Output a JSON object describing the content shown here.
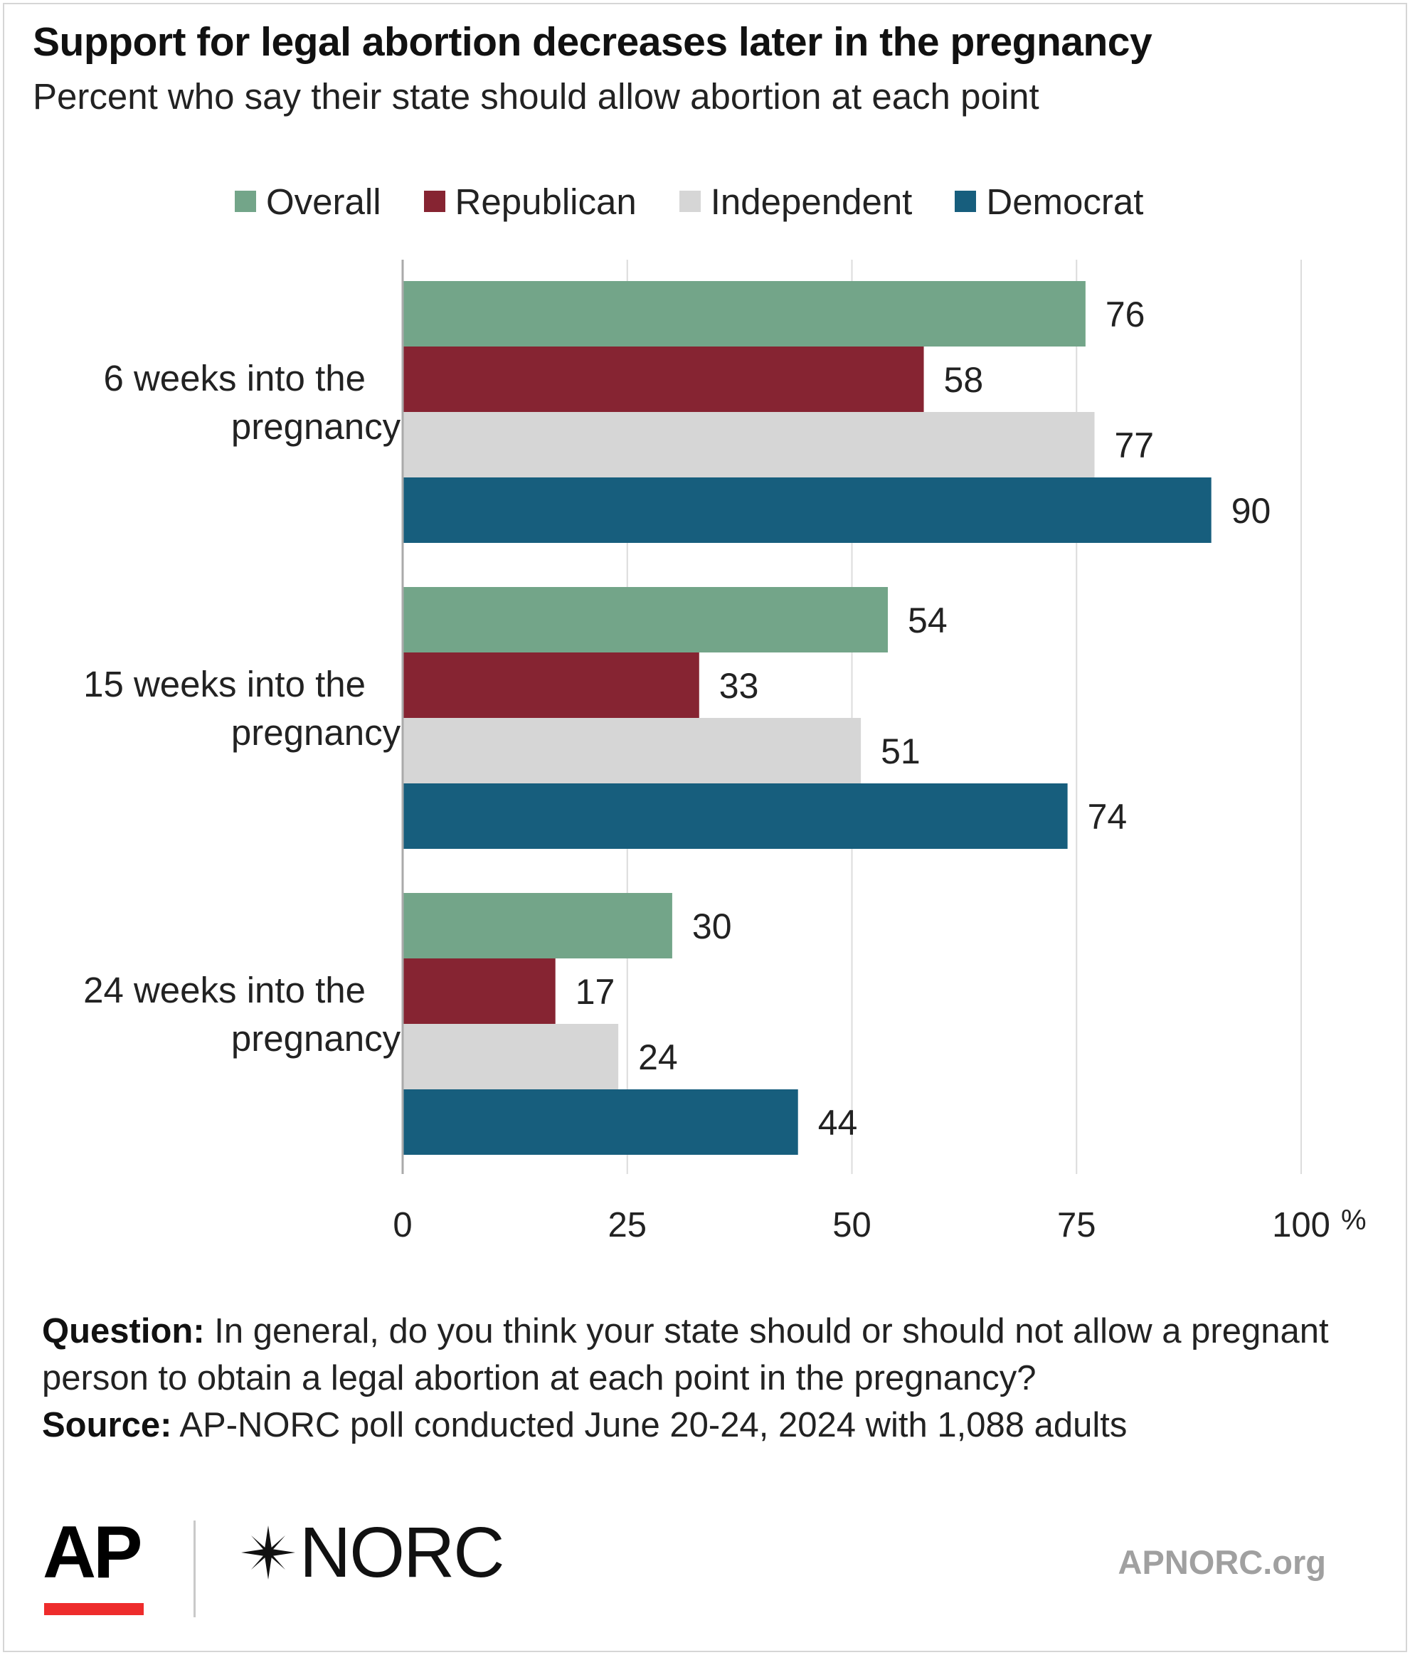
{
  "title": "Support for legal abortion decreases later in the pregnancy",
  "subtitle": "Percent who say their state should allow abortion at each point",
  "colors": {
    "overall": "#73a589",
    "republican": "#862432",
    "independent": "#d6d6d6",
    "democrat": "#175e7d",
    "grid": "#dcdcdc",
    "axis": "#aaaaaa",
    "ap_red": "#ee2c2c"
  },
  "chart_data": {
    "type": "bar",
    "orientation": "horizontal",
    "title": "Support for legal abortion decreases later in the pregnancy",
    "subtitle": "Percent who say their state should allow abortion at each point",
    "categories": [
      [
        "6 weeks into the",
        "pregnancy"
      ],
      [
        "15 weeks into the",
        "pregnancy"
      ],
      [
        "24 weeks into the",
        "pregnancy"
      ]
    ],
    "series": [
      {
        "name": "Overall",
        "color": "#73a589",
        "values": [
          76,
          54,
          30
        ]
      },
      {
        "name": "Republican",
        "color": "#862432",
        "values": [
          58,
          33,
          17
        ]
      },
      {
        "name": "Independent",
        "color": "#d6d6d6",
        "values": [
          77,
          51,
          24
        ]
      },
      {
        "name": "Democrat",
        "color": "#175e7d",
        "values": [
          90,
          74,
          44
        ]
      }
    ],
    "xlim": [
      0,
      100
    ],
    "xticks": [
      0,
      25,
      50,
      75,
      100
    ],
    "xtick_labels": [
      "0",
      "25",
      "50",
      "75",
      "100"
    ],
    "x_unit": "%",
    "grid": true,
    "legend_position": "top",
    "data_labels": true
  },
  "footer": {
    "question_label": "Question:",
    "question_text": " In general, do you think your state should or should not allow a pregnant person to obtain a legal abortion at each point in the pregnancy?",
    "source_label": "Source:",
    "source_text": "  AP-NORC poll conducted June 20-24, 2024 with 1,088 adults"
  },
  "logos": {
    "ap": "AP",
    "norc": "NORC",
    "norc_icon": "star-burst-icon",
    "site": "APNORC.org"
  }
}
